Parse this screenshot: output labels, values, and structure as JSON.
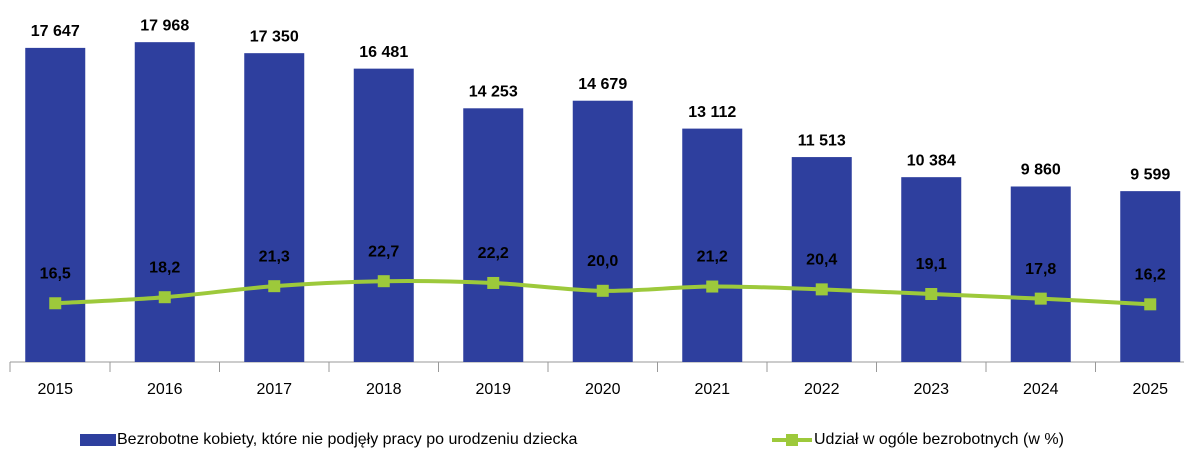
{
  "chart_data": {
    "type": "bar",
    "categories": [
      "2015",
      "2016",
      "2017",
      "2018",
      "2019",
      "2020",
      "2021",
      "2022",
      "2023",
      "2024",
      "2025"
    ],
    "series": [
      {
        "name": "Bezrobotne kobiety, które nie podjęły pracy po urodzeniu dziecka",
        "type": "bar",
        "color": "#2e3f9e",
        "values": [
          17647,
          17968,
          17350,
          16481,
          14253,
          14679,
          13112,
          11513,
          10384,
          9860,
          9599
        ],
        "value_labels": [
          "17 647",
          "17 968",
          "17 350",
          "16 481",
          "14 253",
          "14 679",
          "13 112",
          "11 513",
          "10 384",
          "9 860",
          "9 599"
        ]
      },
      {
        "name": "Udział w ogóle bezrobotnych (w %)",
        "type": "line",
        "axis": "y2",
        "color": "#9dc93b",
        "values": [
          16.5,
          18.2,
          21.3,
          22.7,
          22.2,
          20.0,
          21.2,
          20.4,
          19.1,
          17.8,
          16.2
        ],
        "value_labels": [
          "16,5",
          "18,2",
          "21,3",
          "22,7",
          "22,2",
          "20,0",
          "21,2",
          "20,4",
          "19,1",
          "17,8",
          "16,2"
        ]
      }
    ],
    "ylim": [
      0,
      20000
    ],
    "y2lim": [
      0,
      100
    ],
    "legend": "bottom"
  }
}
